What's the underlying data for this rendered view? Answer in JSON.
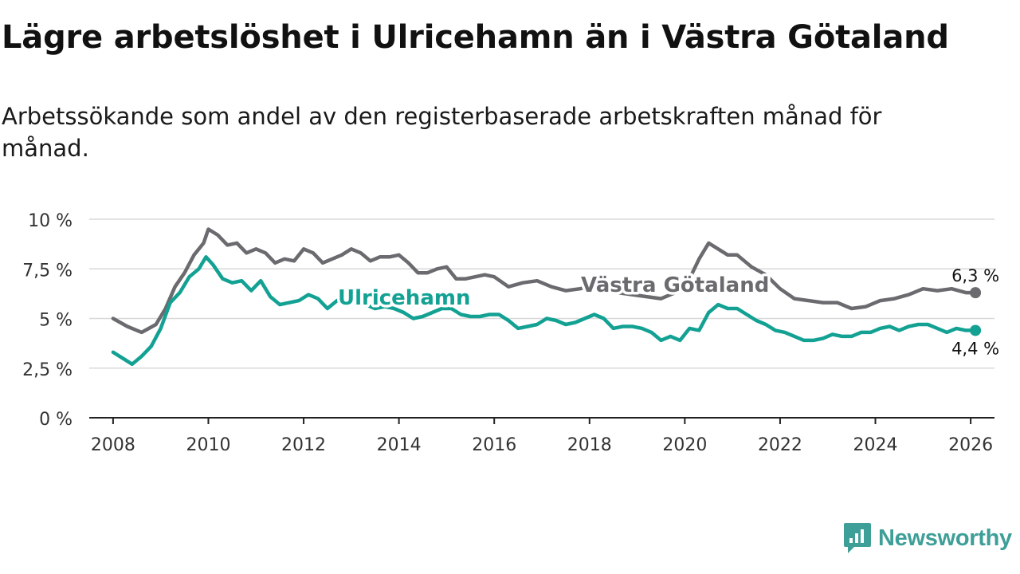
{
  "title": "Lägre arbetslöshet i Ulricehamn än i Västra Götaland",
  "subtitle": "Arbetssökande som andel av den registerbaserade arbetskraften månad för månad.",
  "brand": {
    "name": "Newsworthy",
    "icon": "newsworthy-logo-icon"
  },
  "colors": {
    "ulricehamn": "#12a193",
    "vastra_gotaland": "#6b6a6f",
    "grid": "#d9d9d9",
    "axis": "#222222",
    "brand": "#3e9f98"
  },
  "chart_data": {
    "type": "line",
    "title": "Lägre arbetslöshet i Ulricehamn än i Västra Götaland",
    "xlabel": "",
    "ylabel": "",
    "xlim": [
      2007.5,
      2026.5
    ],
    "ylim": [
      0,
      10
    ],
    "grid": true,
    "yticks": [
      0,
      2.5,
      5,
      7.5,
      10
    ],
    "ytick_labels": [
      "0 %",
      "2,5 %",
      "5 %",
      "7,5 %",
      "10 %"
    ],
    "xticks": [
      2008,
      2010,
      2012,
      2014,
      2016,
      2018,
      2020,
      2022,
      2024,
      2026
    ],
    "xtick_labels": [
      "2008",
      "2010",
      "2012",
      "2014",
      "2016",
      "2018",
      "2020",
      "2022",
      "2024",
      "2026"
    ],
    "series": [
      {
        "name": "Västra Götaland",
        "label": "Västra Götaland",
        "end_label": "6,3 %",
        "x": [
          2008.0,
          2008.3,
          2008.6,
          2008.9,
          2009.1,
          2009.3,
          2009.5,
          2009.7,
          2009.9,
          2010.0,
          2010.2,
          2010.4,
          2010.6,
          2010.8,
          2011.0,
          2011.2,
          2011.4,
          2011.6,
          2011.8,
          2012.0,
          2012.2,
          2012.4,
          2012.6,
          2012.8,
          2013.0,
          2013.2,
          2013.4,
          2013.6,
          2013.8,
          2014.0,
          2014.2,
          2014.4,
          2014.6,
          2014.8,
          2015.0,
          2015.2,
          2015.4,
          2015.6,
          2015.8,
          2016.0,
          2016.3,
          2016.6,
          2016.9,
          2017.2,
          2017.5,
          2017.8,
          2018.0,
          2018.3,
          2018.6,
          2018.9,
          2019.2,
          2019.5,
          2019.8,
          2020.1,
          2020.3,
          2020.5,
          2020.7,
          2020.9,
          2021.1,
          2021.4,
          2021.7,
          2022.0,
          2022.3,
          2022.6,
          2022.9,
          2023.2,
          2023.5,
          2023.8,
          2024.1,
          2024.4,
          2024.7,
          2025.0,
          2025.3,
          2025.6,
          2025.9,
          2026.1
        ],
        "values": [
          5.0,
          4.6,
          4.3,
          4.7,
          5.5,
          6.6,
          7.3,
          8.2,
          8.8,
          9.5,
          9.2,
          8.7,
          8.8,
          8.3,
          8.5,
          8.3,
          7.8,
          8.0,
          7.9,
          8.5,
          8.3,
          7.8,
          8.0,
          8.2,
          8.5,
          8.3,
          7.9,
          8.1,
          8.1,
          8.2,
          7.8,
          7.3,
          7.3,
          7.5,
          7.6,
          7.0,
          7.0,
          7.1,
          7.2,
          7.1,
          6.6,
          6.8,
          6.9,
          6.6,
          6.4,
          6.5,
          6.6,
          6.4,
          6.3,
          6.2,
          6.1,
          6.0,
          6.3,
          7.0,
          8.0,
          8.8,
          8.5,
          8.2,
          8.2,
          7.6,
          7.2,
          6.5,
          6.0,
          5.9,
          5.8,
          5.8,
          5.5,
          5.6,
          5.9,
          6.0,
          6.2,
          6.5,
          6.4,
          6.5,
          6.3,
          6.3
        ]
      },
      {
        "name": "Ulricehamn",
        "label": "Ulricehamn",
        "end_label": "4,4 %",
        "x": [
          2008.0,
          2008.2,
          2008.4,
          2008.6,
          2008.8,
          2009.0,
          2009.2,
          2009.4,
          2009.6,
          2009.8,
          2009.95,
          2010.1,
          2010.3,
          2010.5,
          2010.7,
          2010.9,
          2011.1,
          2011.3,
          2011.5,
          2011.7,
          2011.9,
          2012.1,
          2012.3,
          2012.5,
          2012.7,
          2012.9,
          2013.1,
          2013.3,
          2013.5,
          2013.7,
          2013.9,
          2014.1,
          2014.3,
          2014.5,
          2014.7,
          2014.9,
          2015.1,
          2015.3,
          2015.5,
          2015.7,
          2015.9,
          2016.1,
          2016.3,
          2016.5,
          2016.7,
          2016.9,
          2017.1,
          2017.3,
          2017.5,
          2017.7,
          2017.9,
          2018.1,
          2018.3,
          2018.5,
          2018.7,
          2018.9,
          2019.1,
          2019.3,
          2019.5,
          2019.7,
          2019.9,
          2020.1,
          2020.3,
          2020.5,
          2020.7,
          2020.9,
          2021.1,
          2021.3,
          2021.5,
          2021.7,
          2021.9,
          2022.1,
          2022.3,
          2022.5,
          2022.7,
          2022.9,
          2023.1,
          2023.3,
          2023.5,
          2023.7,
          2023.9,
          2024.1,
          2024.3,
          2024.5,
          2024.7,
          2024.9,
          2025.1,
          2025.3,
          2025.5,
          2025.7,
          2025.9,
          2026.1
        ],
        "values": [
          3.3,
          3.0,
          2.7,
          3.1,
          3.6,
          4.5,
          5.8,
          6.3,
          7.1,
          7.5,
          8.1,
          7.7,
          7.0,
          6.8,
          6.9,
          6.4,
          6.9,
          6.1,
          5.7,
          5.8,
          5.9,
          6.2,
          6.0,
          5.5,
          5.9,
          6.2,
          6.0,
          5.7,
          5.5,
          5.6,
          5.5,
          5.3,
          5.0,
          5.1,
          5.3,
          5.5,
          5.5,
          5.2,
          5.1,
          5.1,
          5.2,
          5.2,
          4.9,
          4.5,
          4.6,
          4.7,
          5.0,
          4.9,
          4.7,
          4.8,
          5.0,
          5.2,
          5.0,
          4.5,
          4.6,
          4.6,
          4.5,
          4.3,
          3.9,
          4.1,
          3.9,
          4.5,
          4.4,
          5.3,
          5.7,
          5.5,
          5.5,
          5.2,
          4.9,
          4.7,
          4.4,
          4.3,
          4.1,
          3.9,
          3.9,
          4.0,
          4.2,
          4.1,
          4.1,
          4.3,
          4.3,
          4.5,
          4.6,
          4.4,
          4.6,
          4.7,
          4.7,
          4.5,
          4.3,
          4.5,
          4.4,
          4.4
        ]
      }
    ]
  }
}
